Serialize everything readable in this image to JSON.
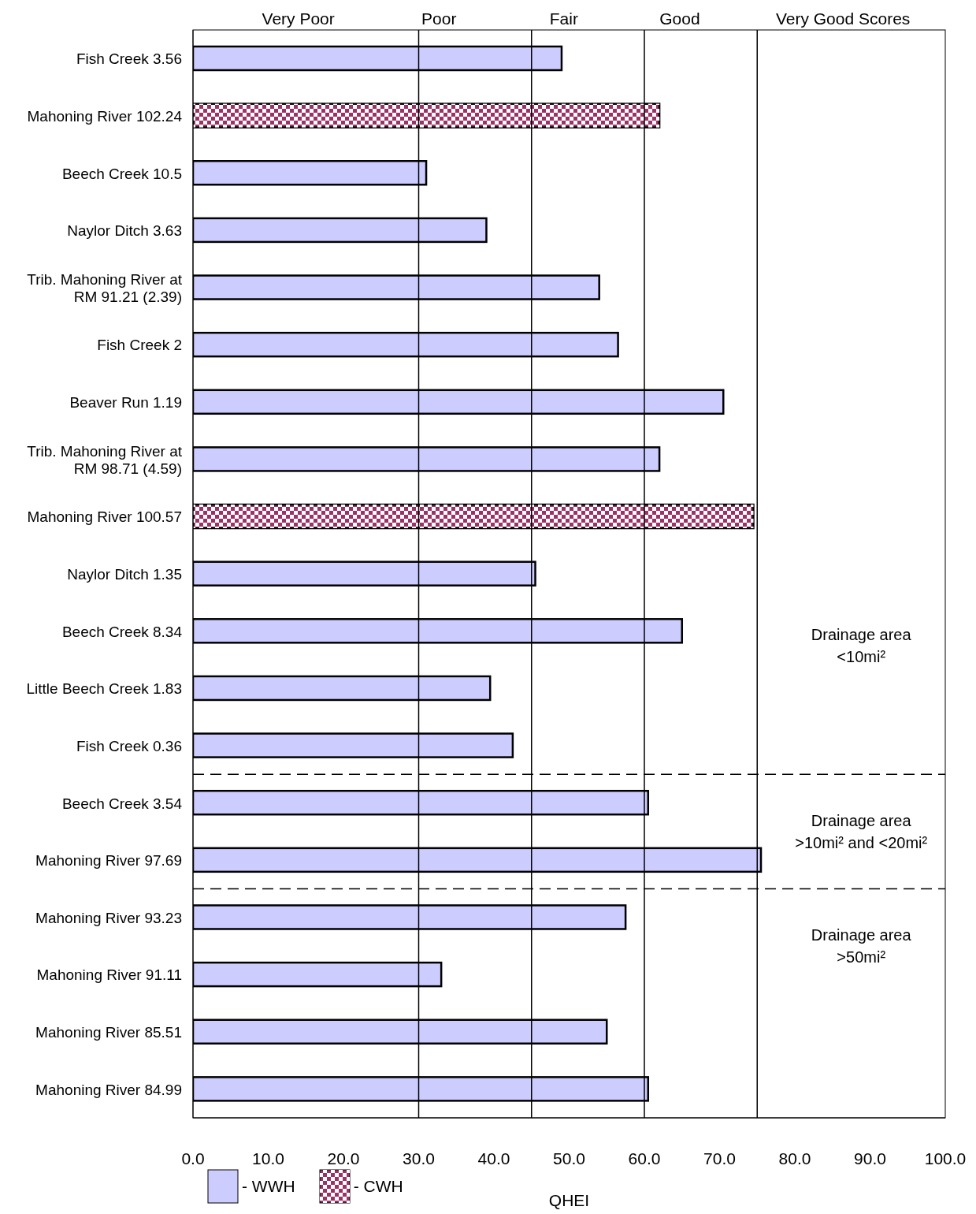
{
  "chart_data": {
    "type": "bar",
    "orientation": "horizontal",
    "stacked": true,
    "xlabel": "QHEI",
    "categories": [
      "Fish Creek 3.56",
      "Mahoning River 102.24",
      "Beech Creek 10.5",
      "Naylor Ditch 3.63",
      "Trib. Mahoning River at RM 91.21 (2.39)",
      "Fish Creek 2",
      "Beaver Run 1.19",
      "Trib. Mahoning River at RM 98.71 (4.59)",
      "Mahoning River 100.57",
      "Naylor Ditch 1.35",
      "Beech Creek 8.34",
      "Little Beech Creek 1.83",
      "Fish Creek 0.36",
      "Beech Creek 3.54",
      "Mahoning River 97.69",
      "Mahoning River 93.23",
      "Mahoning River 91.11",
      "Mahoning River 85.51",
      "Mahoning River 84.99"
    ],
    "series": [
      {
        "name": "- WWH",
        "color": "#ccccff",
        "values": [
          49,
          null,
          31,
          39,
          54,
          56.5,
          70.5,
          62,
          null,
          45.5,
          65,
          39.5,
          42.5,
          60.5,
          75.5,
          57.5,
          33,
          55,
          60.5
        ]
      },
      {
        "name": "- CWH",
        "color": "#993366",
        "values": [
          null,
          62,
          null,
          null,
          null,
          null,
          null,
          null,
          74.5,
          null,
          null,
          null,
          null,
          null,
          null,
          null,
          null,
          null,
          null
        ]
      }
    ],
    "xlim": [
      0,
      100
    ],
    "xticks": [
      {
        "value": 0,
        "label": "0.0"
      },
      {
        "value": 10,
        "label": "10.0"
      },
      {
        "value": 20,
        "label": "20.0"
      },
      {
        "value": 30,
        "label": "30.0"
      },
      {
        "value": 40,
        "label": "40.0"
      },
      {
        "value": 50,
        "label": "50.0"
      },
      {
        "value": 60,
        "label": "60.0"
      },
      {
        "value": 70,
        "label": "70.0"
      },
      {
        "value": 80,
        "label": "80.0"
      },
      {
        "value": 90,
        "label": "90.0"
      },
      {
        "value": 100,
        "label": "100.0"
      }
    ],
    "ref_lines": [
      {
        "axis": "x",
        "value": 30
      },
      {
        "axis": "x",
        "value": 45
      },
      {
        "axis": "x",
        "value": 60
      },
      {
        "axis": "x",
        "value": 75
      }
    ],
    "annotations": [
      "Very Poor",
      "Poor",
      "Fair",
      "Good",
      "Very Good Scores",
      "Drainage area <10mi²",
      "Drainage area >10mi² and <20mi²",
      "Drainage area >50mi²"
    ],
    "legend": "bottom"
  }
}
